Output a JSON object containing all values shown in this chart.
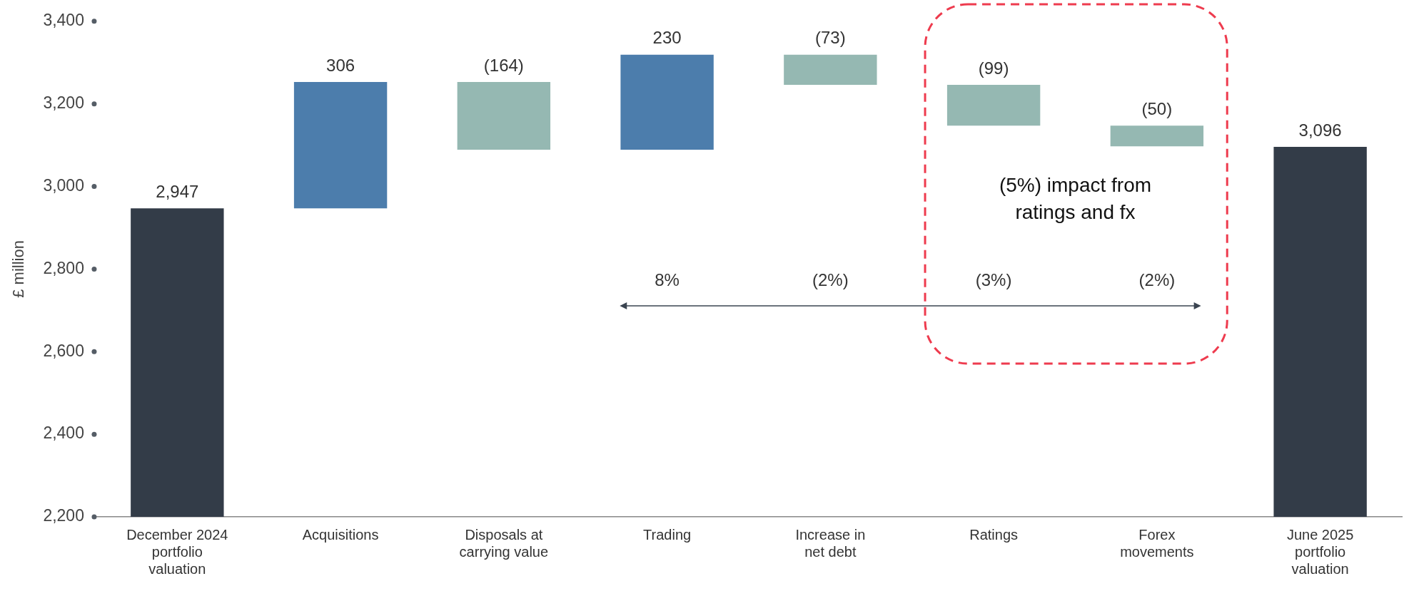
{
  "chart_data": {
    "type": "bar",
    "categories": [
      "December 2024\nportfolio\nvaluation",
      "Acquisitions",
      "Disposals at\ncarrying value",
      "Trading",
      "Increase in\nnet debt",
      "Ratings",
      "Forex\nmovements",
      "June 2025\nportfolio\nvaluation"
    ],
    "values": [
      2947,
      306,
      -164,
      230,
      -73,
      -99,
      -50,
      3096
    ],
    "base": [
      null,
      2947,
      3253,
      3089,
      3319,
      3246,
      3147,
      null
    ],
    "colors": [
      "#333c48",
      "#4c7dac",
      "#95b8b2",
      "#4c7dac",
      "#95b8b2",
      "#95b8b2",
      "#95b8b2",
      "#333c48"
    ],
    "value_labels": [
      "2,947",
      "306",
      "(164)",
      "230",
      "(73)",
      "(99)",
      "(50)",
      "3,096"
    ],
    "ylabel": "£ million",
    "ylim": [
      2200,
      3400
    ],
    "yticks": [
      {
        "value": 2200,
        "label": "2,200"
      },
      {
        "value": 2400,
        "label": "2,400"
      },
      {
        "value": 2600,
        "label": "2,600"
      },
      {
        "value": 2800,
        "label": "2,800"
      },
      {
        "value": 3000,
        "label": "3,000"
      },
      {
        "value": 3200,
        "label": "3,200"
      },
      {
        "value": 3400,
        "label": "3,400"
      }
    ],
    "annotations": [
      "8%",
      "(2%)",
      "(3%)",
      "(2%)",
      "(5%) impact from\nratings and fx"
    ],
    "grid": false,
    "legend": false
  }
}
